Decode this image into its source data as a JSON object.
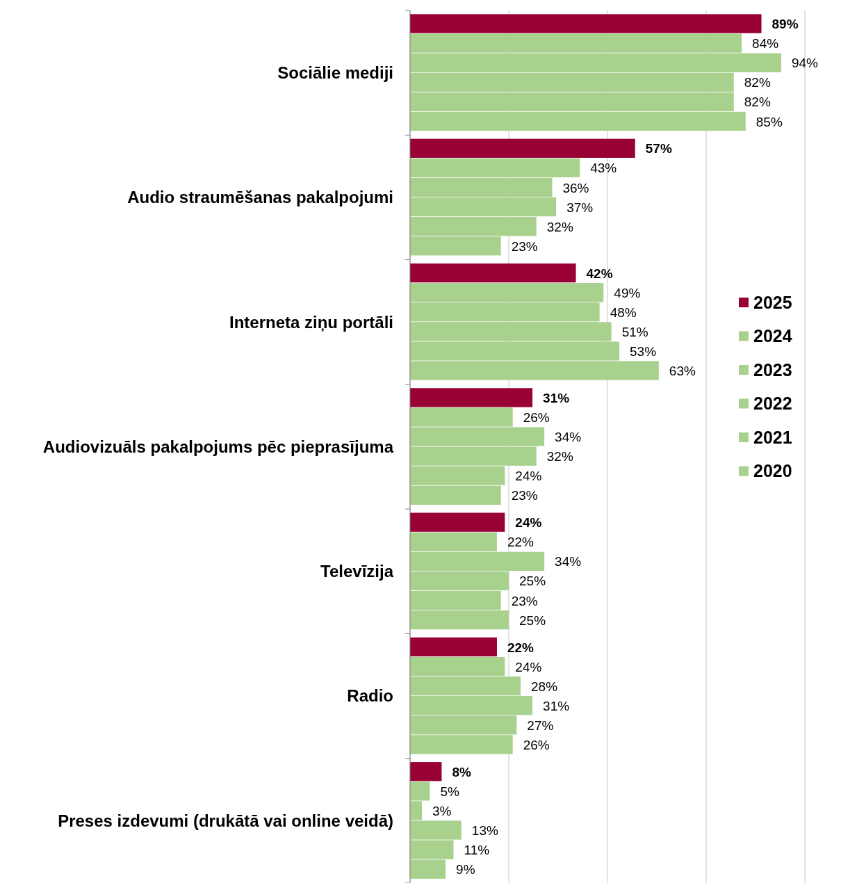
{
  "chart_data": {
    "type": "bar",
    "orientation": "horizontal",
    "categories": [
      "Sociālie mediji",
      "Audio straumēšanas pakalpojumi",
      "Interneta ziņu portāli",
      "Audiovizuāls pakalpojums pēc pieprasījuma",
      "Televīzija",
      "Radio",
      "Preses izdevumi (drukātā vai online veidā)"
    ],
    "series": [
      {
        "name": "2025",
        "color": "#990033",
        "values": [
          89,
          57,
          42,
          31,
          24,
          22,
          8
        ],
        "value_labels": [
          "89%",
          "57%",
          "42%",
          "31%",
          "24%",
          "22%",
          "8%"
        ]
      },
      {
        "name": "2024",
        "color": "#a9d18e",
        "values": [
          84,
          43,
          49,
          26,
          22,
          24,
          5
        ],
        "value_labels": [
          "84%",
          "43%",
          "49%",
          "26%",
          "22%",
          "24%",
          "5%"
        ]
      },
      {
        "name": "2023",
        "color": "#a9d18e",
        "values": [
          94,
          36,
          48,
          34,
          34,
          28,
          3
        ],
        "value_labels": [
          "94%",
          "36%",
          "48%",
          "34%",
          "34%",
          "28%",
          "3%"
        ]
      },
      {
        "name": "2022",
        "color": "#a9d18e",
        "values": [
          82,
          37,
          51,
          32,
          25,
          31,
          13
        ],
        "value_labels": [
          "82%",
          "37%",
          "51%",
          "32%",
          "25%",
          "31%",
          "13%"
        ]
      },
      {
        "name": "2021",
        "color": "#a9d18e",
        "values": [
          82,
          32,
          53,
          24,
          23,
          27,
          11
        ],
        "value_labels": [
          "82%",
          "32%",
          "53%",
          "24%",
          "23%",
          "27%",
          "11%"
        ]
      },
      {
        "name": "2020",
        "color": "#a9d18e",
        "values": [
          85,
          23,
          63,
          23,
          25,
          26,
          9
        ],
        "value_labels": [
          "85%",
          "23%",
          "63%",
          "23%",
          "25%",
          "26%",
          "9%"
        ]
      }
    ],
    "xlim": [
      0,
      100
    ],
    "xticks": [
      {
        "value": 0,
        "label": null
      },
      {
        "value": 25,
        "label": null
      },
      {
        "value": 50,
        "label": null
      },
      {
        "value": 75,
        "label": null
      },
      {
        "value": 100,
        "label": null
      }
    ],
    "grid": "x",
    "legend": "right",
    "tick_labels": "y"
  }
}
